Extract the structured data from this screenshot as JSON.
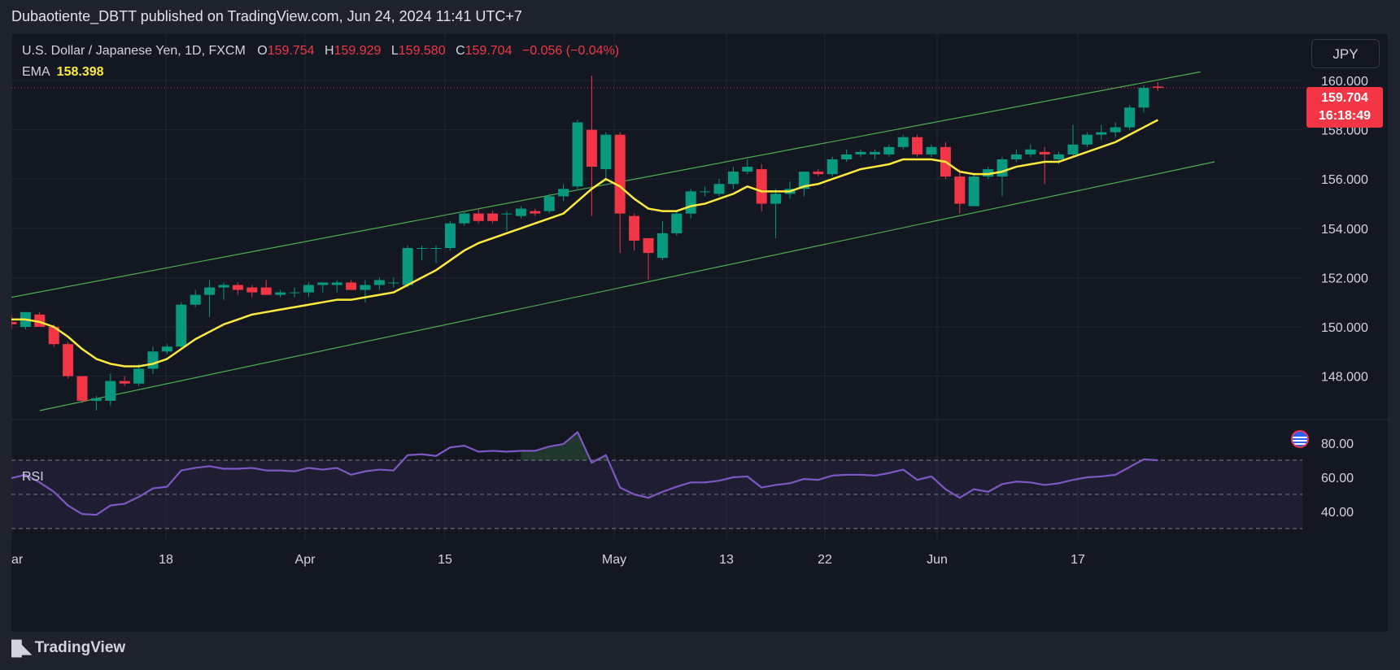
{
  "header": {
    "publisher_line": "Dubaotiente_DBTT published on TradingView.com, Jun 24, 2024 11:41 UTC+7"
  },
  "legend": {
    "symbol": "U.S. Dollar / Japanese Yen, 1D, FXCM",
    "o_label": "O",
    "o_value": "159.754",
    "h_label": "H",
    "h_value": "159.929",
    "l_label": "L",
    "l_value": "159.580",
    "c_label": "C",
    "c_value": "159.704",
    "change": "−0.056 (−0.04%)",
    "ema_label": "EMA",
    "ema_value": "158.398"
  },
  "currency_button": "JPY",
  "last_price": {
    "price": "159.704",
    "countdown": "16:18:49"
  },
  "rsi_label": "RSI",
  "footer": {
    "brand": "TradingView"
  },
  "colors": {
    "up": "#089981",
    "down": "#f23645",
    "ema": "#ffeb3b",
    "rsi": "#7e57c2",
    "channel": "#4caf50"
  },
  "chart_data": {
    "type": "candlestick",
    "x_tick_labels": [
      "ar",
      "18",
      "Apr",
      "15",
      "May",
      "13",
      "22",
      "Jun",
      "17"
    ],
    "y_tick_labels": [
      "160.000",
      "158.000",
      "156.000",
      "154.000",
      "152.000",
      "150.000",
      "148.000"
    ],
    "ylim": [
      146.5,
      160.8
    ],
    "candles": [
      {
        "o": 150.2,
        "h": 150.5,
        "l": 149.9,
        "c": 150.1
      },
      {
        "o": 150.0,
        "h": 150.6,
        "l": 149.9,
        "c": 150.6
      },
      {
        "o": 150.5,
        "h": 150.6,
        "l": 150.0,
        "c": 150.0
      },
      {
        "o": 150.0,
        "h": 150.1,
        "l": 149.2,
        "c": 149.3
      },
      {
        "o": 149.3,
        "h": 149.4,
        "l": 147.9,
        "c": 148.0
      },
      {
        "o": 148.0,
        "h": 148.0,
        "l": 146.9,
        "c": 147.0
      },
      {
        "o": 147.0,
        "h": 147.2,
        "l": 146.6,
        "c": 147.1
      },
      {
        "o": 147.0,
        "h": 148.1,
        "l": 146.8,
        "c": 147.8
      },
      {
        "o": 147.8,
        "h": 148.0,
        "l": 147.6,
        "c": 147.7
      },
      {
        "o": 147.7,
        "h": 148.5,
        "l": 147.6,
        "c": 148.3
      },
      {
        "o": 148.3,
        "h": 149.2,
        "l": 148.1,
        "c": 149.0
      },
      {
        "o": 149.0,
        "h": 149.3,
        "l": 148.9,
        "c": 149.2
      },
      {
        "o": 149.2,
        "h": 151.0,
        "l": 149.1,
        "c": 150.9
      },
      {
        "o": 150.9,
        "h": 151.5,
        "l": 150.8,
        "c": 151.3
      },
      {
        "o": 151.3,
        "h": 151.9,
        "l": 150.4,
        "c": 151.6
      },
      {
        "o": 151.6,
        "h": 151.8,
        "l": 151.1,
        "c": 151.7
      },
      {
        "o": 151.7,
        "h": 151.8,
        "l": 151.3,
        "c": 151.5
      },
      {
        "o": 151.6,
        "h": 151.7,
        "l": 151.2,
        "c": 151.4
      },
      {
        "o": 151.6,
        "h": 151.9,
        "l": 151.3,
        "c": 151.3
      },
      {
        "o": 151.3,
        "h": 151.5,
        "l": 151.2,
        "c": 151.4
      },
      {
        "o": 151.4,
        "h": 151.6,
        "l": 151.2,
        "c": 151.4
      },
      {
        "o": 151.4,
        "h": 151.8,
        "l": 151.2,
        "c": 151.7
      },
      {
        "o": 151.7,
        "h": 151.8,
        "l": 151.4,
        "c": 151.8
      },
      {
        "o": 151.7,
        "h": 151.9,
        "l": 151.4,
        "c": 151.8
      },
      {
        "o": 151.8,
        "h": 151.9,
        "l": 151.5,
        "c": 151.5
      },
      {
        "o": 151.5,
        "h": 151.9,
        "l": 151.0,
        "c": 151.7
      },
      {
        "o": 151.7,
        "h": 152.0,
        "l": 151.5,
        "c": 151.9
      },
      {
        "o": 151.8,
        "h": 152.0,
        "l": 151.6,
        "c": 151.8
      },
      {
        "o": 151.7,
        "h": 153.3,
        "l": 151.6,
        "c": 153.2
      },
      {
        "o": 153.2,
        "h": 153.3,
        "l": 152.7,
        "c": 153.2
      },
      {
        "o": 153.2,
        "h": 153.3,
        "l": 152.6,
        "c": 153.2
      },
      {
        "o": 153.2,
        "h": 154.3,
        "l": 153.1,
        "c": 154.2
      },
      {
        "o": 154.2,
        "h": 154.7,
        "l": 154.1,
        "c": 154.6
      },
      {
        "o": 154.6,
        "h": 154.8,
        "l": 154.2,
        "c": 154.3
      },
      {
        "o": 154.6,
        "h": 154.7,
        "l": 154.2,
        "c": 154.3
      },
      {
        "o": 154.6,
        "h": 154.7,
        "l": 153.9,
        "c": 154.6
      },
      {
        "o": 154.5,
        "h": 154.9,
        "l": 154.4,
        "c": 154.8
      },
      {
        "o": 154.7,
        "h": 154.8,
        "l": 154.5,
        "c": 154.6
      },
      {
        "o": 154.7,
        "h": 155.4,
        "l": 154.6,
        "c": 155.3
      },
      {
        "o": 155.3,
        "h": 155.8,
        "l": 155.1,
        "c": 155.6
      },
      {
        "o": 155.7,
        "h": 158.4,
        "l": 155.6,
        "c": 158.3
      },
      {
        "o": 158.0,
        "h": 160.2,
        "l": 154.5,
        "c": 156.5
      },
      {
        "o": 156.4,
        "h": 157.9,
        "l": 155.9,
        "c": 157.8
      },
      {
        "o": 157.8,
        "h": 157.9,
        "l": 153.0,
        "c": 154.6
      },
      {
        "o": 154.5,
        "h": 154.6,
        "l": 153.1,
        "c": 153.5
      },
      {
        "o": 153.6,
        "h": 153.6,
        "l": 151.9,
        "c": 153.0
      },
      {
        "o": 152.8,
        "h": 154.3,
        "l": 152.7,
        "c": 153.8
      },
      {
        "o": 153.8,
        "h": 154.7,
        "l": 153.7,
        "c": 154.6
      },
      {
        "o": 154.6,
        "h": 155.6,
        "l": 154.4,
        "c": 155.5
      },
      {
        "o": 155.5,
        "h": 155.7,
        "l": 155.3,
        "c": 155.5
      },
      {
        "o": 155.4,
        "h": 156.0,
        "l": 155.3,
        "c": 155.8
      },
      {
        "o": 155.8,
        "h": 156.5,
        "l": 155.6,
        "c": 156.3
      },
      {
        "o": 156.3,
        "h": 156.8,
        "l": 156.2,
        "c": 156.5
      },
      {
        "o": 156.4,
        "h": 156.6,
        "l": 154.7,
        "c": 155.0
      },
      {
        "o": 155.0,
        "h": 155.6,
        "l": 153.6,
        "c": 155.4
      },
      {
        "o": 155.4,
        "h": 155.9,
        "l": 155.2,
        "c": 155.6
      },
      {
        "o": 155.6,
        "h": 156.3,
        "l": 155.3,
        "c": 156.3
      },
      {
        "o": 156.3,
        "h": 156.4,
        "l": 156.1,
        "c": 156.2
      },
      {
        "o": 156.2,
        "h": 156.9,
        "l": 156.1,
        "c": 156.8
      },
      {
        "o": 156.8,
        "h": 157.2,
        "l": 156.7,
        "c": 157.0
      },
      {
        "o": 157.0,
        "h": 157.2,
        "l": 156.9,
        "c": 157.1
      },
      {
        "o": 157.0,
        "h": 157.2,
        "l": 156.8,
        "c": 157.1
      },
      {
        "o": 157.0,
        "h": 157.4,
        "l": 156.9,
        "c": 157.3
      },
      {
        "o": 157.3,
        "h": 157.8,
        "l": 157.2,
        "c": 157.7
      },
      {
        "o": 157.7,
        "h": 157.8,
        "l": 156.9,
        "c": 157.0
      },
      {
        "o": 157.0,
        "h": 157.4,
        "l": 156.9,
        "c": 157.3
      },
      {
        "o": 157.3,
        "h": 157.5,
        "l": 156.0,
        "c": 156.1
      },
      {
        "o": 156.1,
        "h": 156.4,
        "l": 154.6,
        "c": 155.0
      },
      {
        "o": 154.9,
        "h": 156.2,
        "l": 154.9,
        "c": 156.1
      },
      {
        "o": 156.1,
        "h": 156.5,
        "l": 156.0,
        "c": 156.4
      },
      {
        "o": 156.1,
        "h": 156.9,
        "l": 155.3,
        "c": 156.8
      },
      {
        "o": 156.8,
        "h": 157.2,
        "l": 156.7,
        "c": 157.0
      },
      {
        "o": 157.0,
        "h": 157.4,
        "l": 156.9,
        "c": 157.2
      },
      {
        "o": 157.1,
        "h": 157.3,
        "l": 155.8,
        "c": 157.0
      },
      {
        "o": 156.8,
        "h": 157.1,
        "l": 156.6,
        "c": 157.0
      },
      {
        "o": 157.0,
        "h": 158.2,
        "l": 156.9,
        "c": 157.4
      },
      {
        "o": 157.4,
        "h": 157.9,
        "l": 157.3,
        "c": 157.8
      },
      {
        "o": 157.8,
        "h": 158.2,
        "l": 157.6,
        "c": 157.9
      },
      {
        "o": 157.9,
        "h": 158.3,
        "l": 157.7,
        "c": 158.1
      },
      {
        "o": 158.1,
        "h": 159.0,
        "l": 158.0,
        "c": 158.9
      },
      {
        "o": 158.9,
        "h": 159.8,
        "l": 158.7,
        "c": 159.7
      },
      {
        "o": 159.754,
        "h": 159.929,
        "l": 159.58,
        "c": 159.704
      }
    ],
    "ema": [
      150.3,
      150.3,
      150.2,
      150.0,
      149.6,
      149.1,
      148.7,
      148.5,
      148.4,
      148.4,
      148.5,
      148.7,
      149.1,
      149.5,
      149.8,
      150.1,
      150.3,
      150.5,
      150.6,
      150.7,
      150.8,
      150.9,
      151.0,
      151.1,
      151.1,
      151.2,
      151.3,
      151.4,
      151.7,
      152.0,
      152.3,
      152.7,
      153.1,
      153.4,
      153.6,
      153.8,
      154.0,
      154.2,
      154.4,
      154.6,
      155.1,
      155.6,
      156.0,
      155.7,
      155.2,
      154.8,
      154.7,
      154.7,
      154.9,
      155.0,
      155.2,
      155.4,
      155.7,
      155.5,
      155.5,
      155.5,
      155.7,
      155.8,
      156.0,
      156.2,
      156.4,
      156.5,
      156.6,
      156.8,
      156.8,
      156.8,
      156.7,
      156.3,
      156.2,
      156.2,
      156.3,
      156.5,
      156.6,
      156.7,
      156.7,
      156.9,
      157.1,
      157.3,
      157.5,
      157.8,
      158.1,
      158.4
    ],
    "channel": {
      "upper": {
        "x": [
          0,
          84
        ],
        "y": [
          151.2,
          160.35
        ]
      },
      "lower": {
        "x": [
          2,
          85
        ],
        "y": [
          146.6,
          156.7
        ]
      }
    },
    "rsi": {
      "y_tick_labels": [
        "80.00",
        "60.00",
        "40.00"
      ],
      "ylim": [
        30,
        90
      ],
      "levels": [
        70,
        50,
        30
      ],
      "values": [
        59.5,
        61.5,
        57.0,
        51.5,
        43.5,
        38.5,
        38.0,
        43.5,
        44.5,
        48.5,
        53.5,
        54.5,
        64.0,
        65.5,
        66.5,
        65.0,
        65.0,
        65.5,
        64.0,
        64.0,
        63.5,
        65.5,
        64.5,
        65.5,
        61.5,
        63.5,
        64.5,
        64.0,
        73.0,
        73.5,
        72.5,
        77.5,
        78.5,
        75.0,
        75.5,
        75.0,
        75.5,
        75.5,
        78.0,
        79.5,
        86.5,
        68.5,
        73.0,
        54.0,
        50.0,
        48.0,
        51.5,
        54.5,
        57.0,
        57.0,
        58.0,
        60.0,
        60.5,
        54.0,
        55.5,
        56.5,
        59.0,
        58.5,
        61.0,
        61.5,
        61.5,
        61.0,
        62.5,
        64.5,
        58.5,
        60.5,
        53.0,
        48.0,
        53.0,
        51.5,
        56.0,
        57.5,
        57.0,
        55.5,
        56.5,
        58.5,
        60.0,
        60.5,
        61.5,
        66.0,
        70.5,
        70.0
      ]
    }
  }
}
